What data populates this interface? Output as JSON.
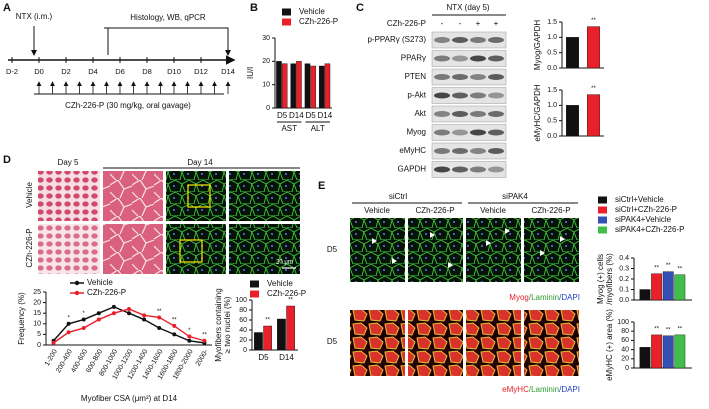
{
  "panels": {
    "A": {
      "letter": "A",
      "injury": "NTX (i.m.)",
      "analysis": "Histology, WB, qPCR",
      "days": [
        "D-2",
        "D0",
        "D2",
        "D4",
        "D6",
        "D8",
        "D10",
        "D12",
        "D14"
      ],
      "treatment": "CZh-226-P (30 mg/kg, oral gavage)"
    },
    "B": {
      "letter": "B"
    },
    "C": {
      "letter": "C",
      "condition": "NTX (day 5)",
      "treatment_label": "CZh-226-P",
      "lanes": [
        "-",
        "-",
        "+",
        "+"
      ],
      "blots": [
        "p-PPARγ (S273)",
        "PPARγ",
        "PTEN",
        "p-Akt",
        "Akt",
        "Myog",
        "eMyHC",
        "GAPDH"
      ]
    },
    "D": {
      "letter": "D",
      "columns": [
        "Day 5",
        "Day 14"
      ],
      "rows": [
        "Vehicle",
        "CZh-226-P"
      ],
      "scale": "20 μm"
    },
    "E": {
      "letter": "E",
      "groups": [
        "siCtrl",
        "siPAK4"
      ],
      "columns": [
        "Vehicle",
        "CZh-226-P",
        "Vehicle",
        "CZh-226-P"
      ],
      "rows": [
        "D5",
        "D5"
      ],
      "stains": [
        [
          "Myog",
          "/Laminin",
          "/DAPI"
        ],
        [
          "eMyHC",
          "/Laminin",
          "/DAPI"
        ]
      ]
    }
  },
  "chart_data": [
    {
      "type": "bar",
      "y_label": [
        "IU/l"
      ],
      "categories": [
        "D5",
        "D14",
        "D5",
        "D14"
      ],
      "groups": [
        "AST",
        "ALT"
      ],
      "series": [
        {
          "name": "Vehicle",
          "color": "#111111",
          "values": [
            20,
            19,
            19,
            18
          ]
        },
        {
          "name": "CZh-226-P",
          "color": "#e8202a",
          "values": [
            19,
            20,
            18,
            19
          ]
        }
      ],
      "ylim": [
        0,
        30
      ],
      "yticks": [
        0,
        10,
        20,
        30
      ],
      "legend": "top"
    },
    {
      "type": "bar",
      "y_label": [
        "Myog/GAPDH"
      ],
      "categories": [
        null,
        null
      ],
      "values": [
        1.0,
        1.35
      ],
      "colors": [
        "#111111",
        "#e8202a"
      ],
      "significance": [
        null,
        "**"
      ],
      "ylim": [
        0,
        1.5
      ],
      "yticks": [
        {
          "value": 0,
          "label": "0.0"
        },
        0.5,
        {
          "value": 1,
          "label": "1.0"
        },
        1.5
      ]
    },
    {
      "type": "bar",
      "y_label": [
        "eMyHC/GAPDH"
      ],
      "categories": [
        null,
        null
      ],
      "values": [
        1.0,
        1.35
      ],
      "colors": [
        "#111111",
        "#e8202a"
      ],
      "significance": [
        null,
        "**"
      ],
      "ylim": [
        0,
        1.5
      ],
      "yticks": [
        {
          "value": 0,
          "label": "0.0"
        },
        0.5,
        {
          "value": 1,
          "label": "1.0"
        },
        1.5
      ]
    },
    {
      "type": "line",
      "y_label": [
        "Frequency (%)"
      ],
      "x_label": "Myofiber CSA (μm²) at D14",
      "categories": [
        "1-200",
        "200-400",
        "400-600",
        "600-800",
        "800-1000",
        "1000-1200",
        "1200-1400",
        "1400-1600",
        "1600-1800",
        "1800-2000",
        "2000-"
      ],
      "series": [
        {
          "name": "Vehicle",
          "color": "#111111",
          "values": [
            2,
            10,
            12,
            15,
            18,
            15,
            12,
            8,
            5,
            2,
            1
          ]
        },
        {
          "name": "CZh-226-P",
          "color": "#e8202a",
          "values": [
            1,
            6,
            8,
            12,
            15,
            17,
            14,
            13,
            9,
            4,
            2
          ]
        }
      ],
      "significance": [
        null,
        "*",
        "*",
        null,
        null,
        null,
        null,
        "**",
        "**",
        "*",
        "**"
      ],
      "ylim": [
        0,
        25
      ],
      "yticks": [
        0,
        5,
        10,
        15,
        20,
        25
      ],
      "legend": "top"
    },
    {
      "type": "bar",
      "y_label": [
        "Myofibers containing",
        "≥ two nuclei (%)"
      ],
      "categories": [
        "D5",
        "D14"
      ],
      "series": [
        {
          "name": "Vehicle",
          "color": "#111111",
          "values": [
            35,
            62
          ],
          "significance": [
            null,
            null
          ]
        },
        {
          "name": "CZh-226-P",
          "color": "#e8202a",
          "values": [
            48,
            88
          ],
          "significance": [
            "**",
            "**"
          ]
        }
      ],
      "ylim": [
        0,
        100
      ],
      "yticks": [
        0,
        20,
        40,
        60,
        80,
        100
      ],
      "legend": "top"
    },
    {
      "type": "bar",
      "y_label": [
        "Myog (+) cells",
        "/myofibers (%)"
      ],
      "categories": [
        null
      ],
      "series": [
        {
          "name": "siCtrl+Vehicle",
          "color": "#111111",
          "values": [
            0.1
          ],
          "significance": [
            null
          ]
        },
        {
          "name": "siCtrl+CZh-226-P",
          "color": "#e8202a",
          "values": [
            0.25
          ],
          "significance": [
            "**"
          ]
        },
        {
          "name": "siPAK4+Vehicle",
          "color": "#3450b4",
          "values": [
            0.27
          ],
          "significance": [
            "**"
          ]
        },
        {
          "name": "siPAK4+CZh-226-P",
          "color": "#3fbf4a",
          "values": [
            0.24
          ],
          "significance": [
            "**"
          ]
        }
      ],
      "ylim": [
        0,
        0.4
      ],
      "yticks": [
        {
          "value": 0,
          "label": "0.0"
        },
        0.1,
        0.2,
        0.3,
        0.4
      ],
      "legend": "top"
    },
    {
      "type": "bar",
      "y_label": [
        "eMyHC (+) area (%)"
      ],
      "categories": [
        null
      ],
      "series": [
        {
          "name": "siCtrl+Vehicle",
          "color": "#111111",
          "values": [
            45
          ],
          "significance": [
            null
          ]
        },
        {
          "name": "siCtrl+CZh-226-P",
          "color": "#e8202a",
          "values": [
            72
          ],
          "significance": [
            "**"
          ]
        },
        {
          "name": "siPAK4+Vehicle",
          "color": "#3450b4",
          "values": [
            70
          ],
          "significance": [
            "**"
          ]
        },
        {
          "name": "siPAK4+CZh-226-P",
          "color": "#3fbf4a",
          "values": [
            72
          ],
          "significance": [
            "**"
          ]
        }
      ],
      "ylim": [
        0,
        100
      ],
      "yticks": [
        0,
        20,
        40,
        60,
        80,
        100
      ]
    }
  ]
}
